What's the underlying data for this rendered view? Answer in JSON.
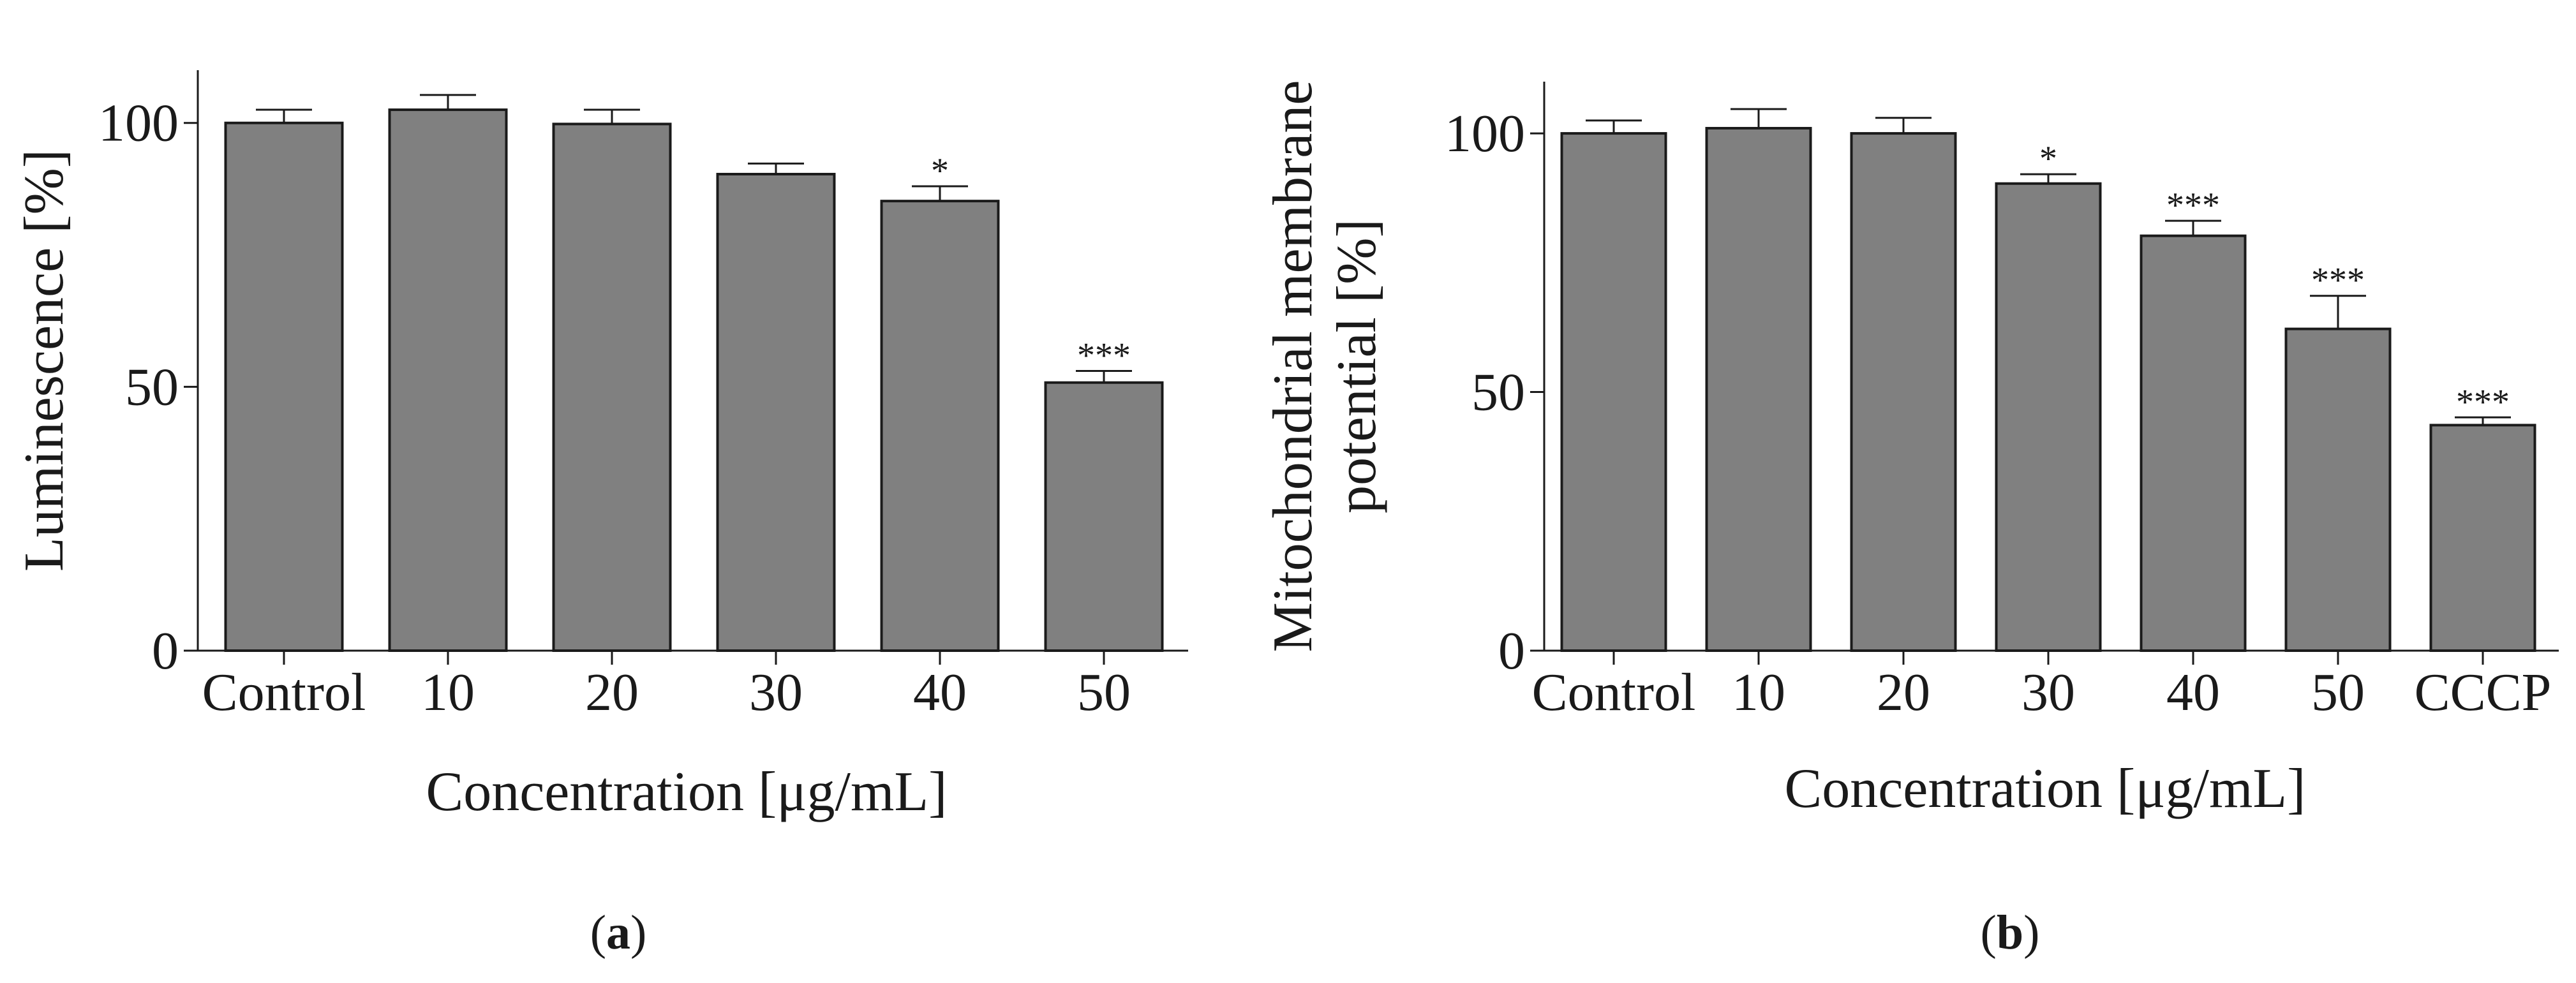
{
  "chart_data": [
    {
      "type": "bar",
      "panel_label": {
        "open": "(",
        "letter": "a",
        "close": ")"
      },
      "categories": [
        "Control",
        "10",
        "20",
        "30",
        "40",
        "50"
      ],
      "values": [
        100,
        102.5,
        99.8,
        90.3,
        85.2,
        50.8
      ],
      "errors": [
        2.5,
        2.8,
        2.7,
        2.0,
        2.8,
        2.2
      ],
      "significance": [
        "",
        "",
        "",
        "",
        "*",
        "***"
      ],
      "xlabel": "Concentration [μg/mL]",
      "ylabel": "Luminescence [%]",
      "ylabel_lines": [
        "Luminescence [%]"
      ],
      "ylim": [
        0,
        110
      ],
      "yticks": [
        0,
        50,
        100
      ],
      "grid": false,
      "bar_color": "#808080"
    },
    {
      "type": "bar",
      "panel_label": {
        "open": "(",
        "letter": "b",
        "close": ")"
      },
      "categories": [
        "Control",
        "10",
        "20",
        "30",
        "40",
        "50",
        "CCCP"
      ],
      "values": [
        100,
        101,
        100,
        90.3,
        80.2,
        62.2,
        43.6
      ],
      "errors": [
        2.5,
        3.7,
        3.0,
        1.8,
        2.9,
        6.4,
        1.5
      ],
      "significance": [
        "",
        "",
        "",
        "*",
        "***",
        "***",
        "***"
      ],
      "xlabel": "Concentration [μg/mL]",
      "ylabel": "Mitochondrial membrane potential [%]",
      "ylabel_lines": [
        "Mitochondrial membrane",
        "potential [%]"
      ],
      "ylim": [
        0,
        110
      ],
      "yticks": [
        0,
        50,
        100
      ],
      "grid": false,
      "bar_color": "#808080"
    }
  ]
}
